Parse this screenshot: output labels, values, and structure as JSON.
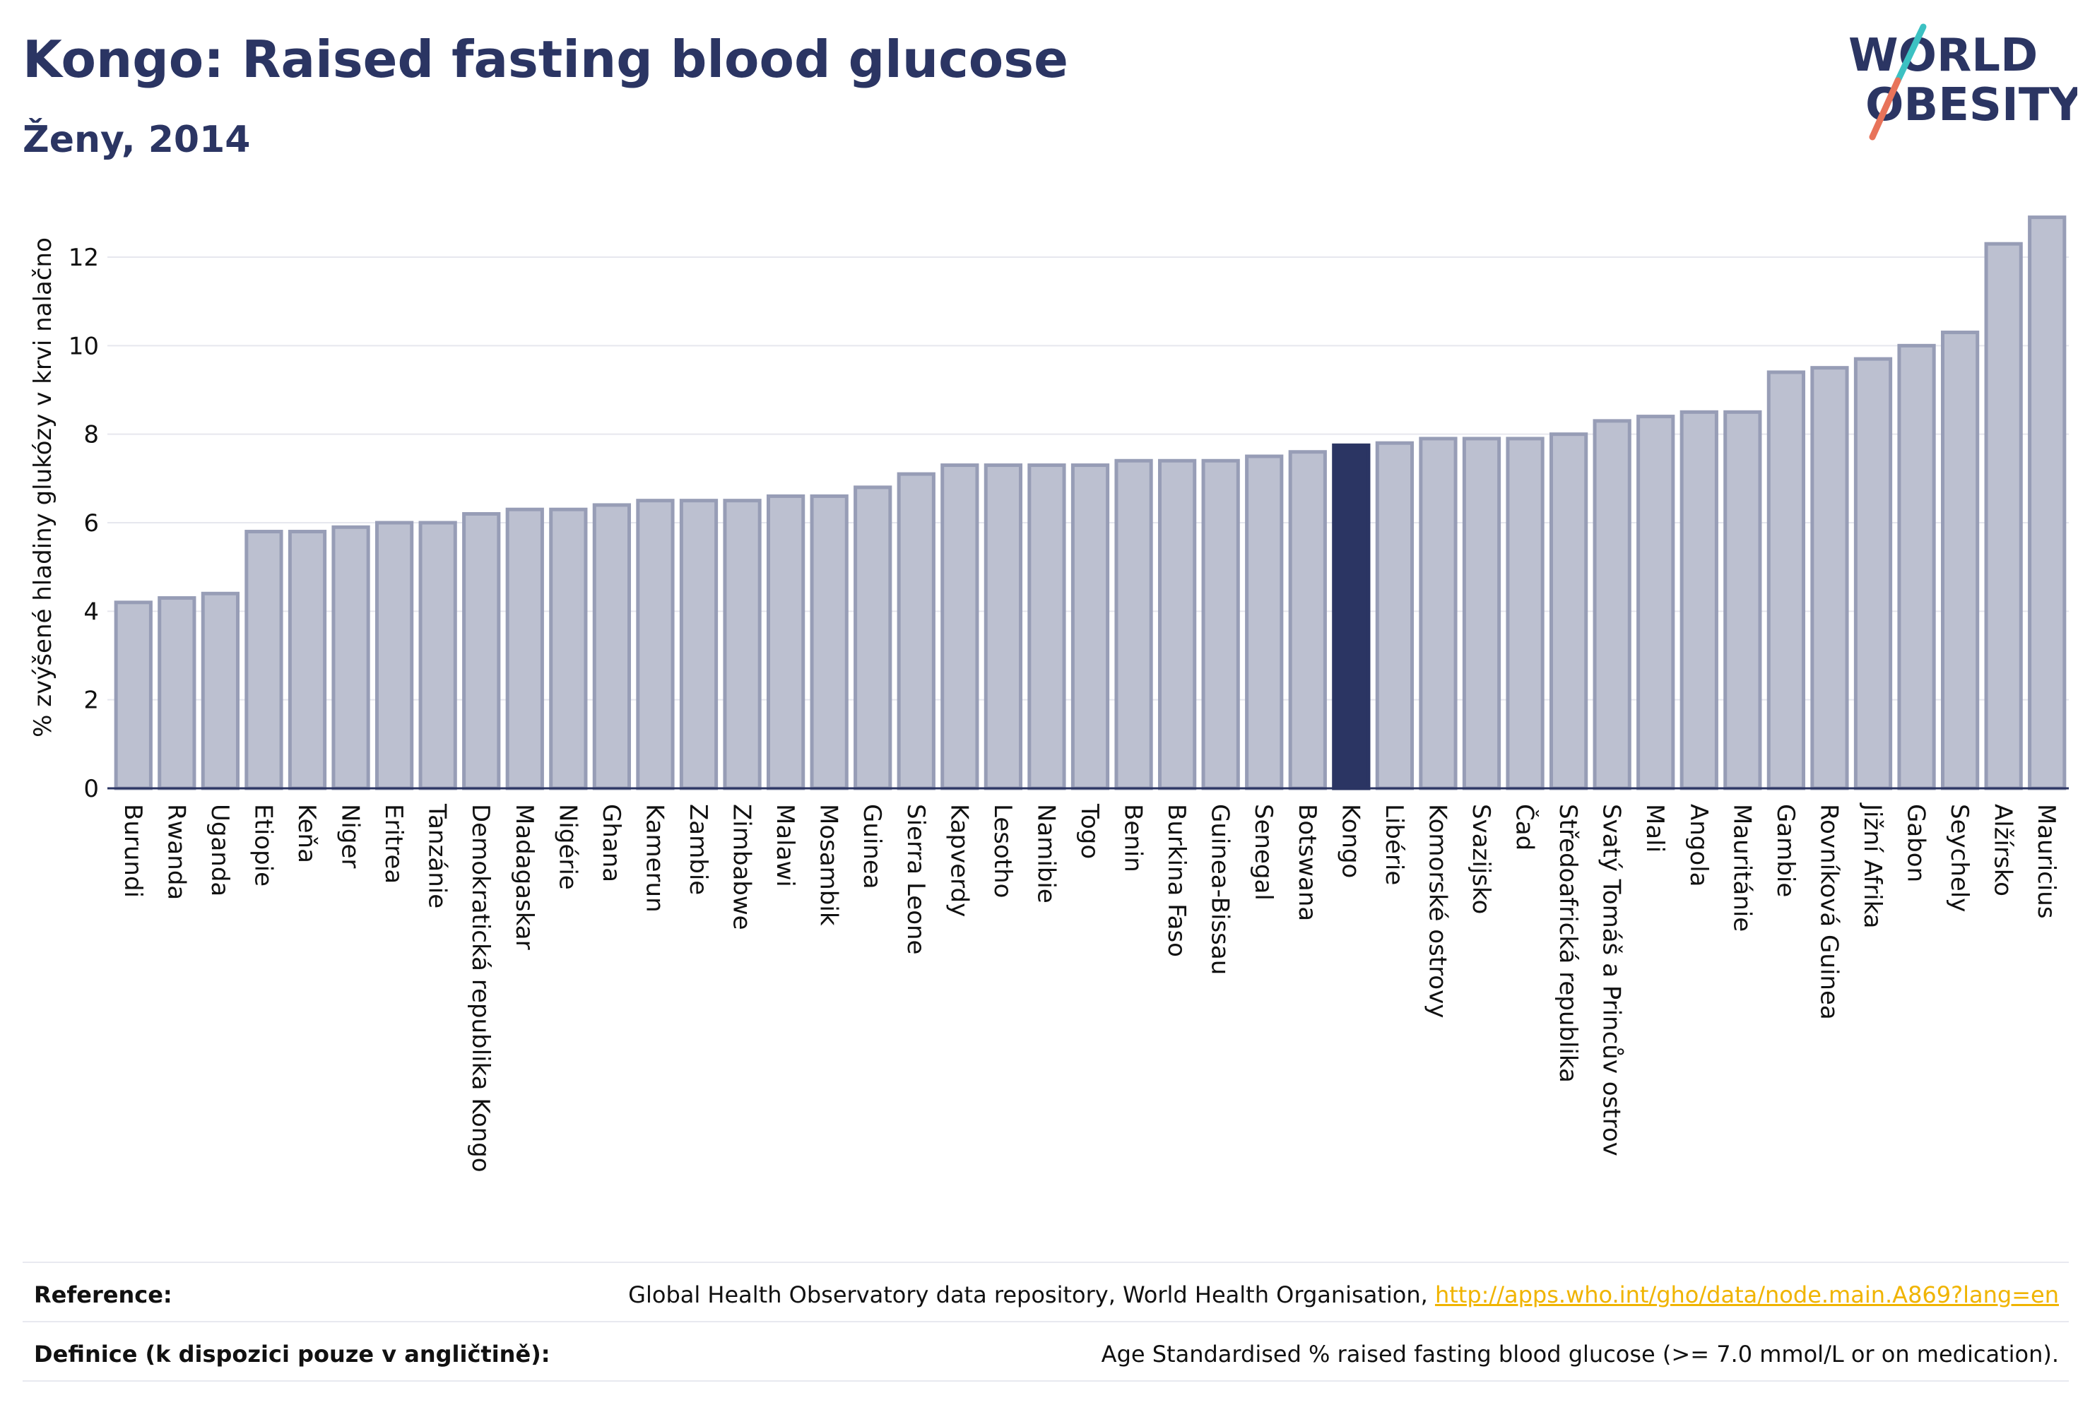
{
  "header": {
    "title": "Kongo: Raised fasting blood glucose",
    "subtitle": "Ženy, 2014"
  },
  "logo": {
    "line1": "WORLD",
    "line2": "OBESITY",
    "accent_teal": "#3cc1c2",
    "accent_coral": "#e8735a"
  },
  "colors": {
    "bar_default": "#bcc0d0",
    "bar_default_stroke": "#979db6",
    "bar_highlight": "#2b3563",
    "text": "#2b3563"
  },
  "chart_data": {
    "type": "bar",
    "ylabel": "% zvýšené hladiny glukózy v krvi nalačno",
    "xlabel": "",
    "ylim": [
      0,
      13.5
    ],
    "yticks": [
      0,
      2,
      4,
      6,
      8,
      10,
      12
    ],
    "grid": true,
    "highlight": "Kongo",
    "categories": [
      "Burundi",
      "Rwanda",
      "Uganda",
      "Etiopie",
      "Keňa",
      "Niger",
      "Eritrea",
      "Tanzánie",
      "Demokratická republika Kongo",
      "Madagaskar",
      "Nigérie",
      "Ghana",
      "Kamerun",
      "Zambie",
      "Zimbabwe",
      "Malawi",
      "Mosambik",
      "Guinea",
      "Sierra Leone",
      "Kapverdy",
      "Lesotho",
      "Namibie",
      "Togo",
      "Benin",
      "Burkina Faso",
      "Guinea-Bissau",
      "Senegal",
      "Botswana",
      "Kongo",
      "Libérie",
      "Komorské ostrovy",
      "Svazijsko",
      "Čad",
      "Středoafrická republika",
      "Svatý Tomáš a Princův ostrov",
      "Mali",
      "Angola",
      "Mauritánie",
      "Gambie",
      "Rovníková Guinea",
      "Jižní Afrika",
      "Gabon",
      "Seychely",
      "Alžírsko",
      "Mauricius"
    ],
    "values": [
      4.2,
      4.3,
      4.4,
      5.8,
      5.8,
      5.9,
      6.0,
      6.0,
      6.2,
      6.3,
      6.3,
      6.4,
      6.5,
      6.5,
      6.5,
      6.6,
      6.6,
      6.8,
      7.1,
      7.3,
      7.3,
      7.3,
      7.3,
      7.4,
      7.4,
      7.4,
      7.5,
      7.6,
      7.75,
      7.8,
      7.9,
      7.9,
      7.9,
      8.0,
      8.3,
      8.4,
      8.5,
      8.5,
      9.4,
      9.5,
      9.7,
      10.0,
      10.3,
      12.3,
      12.9
    ]
  },
  "footer": {
    "reference_label": "Reference:",
    "reference_text": "Global Health Observatory data repository, World Health Organisation, ",
    "reference_link": "http://apps.who.int/gho/data/node.main.A869?lang=en",
    "definition_label": "Definice (k dispozici pouze v angličtině):",
    "definition_text": "Age Standardised % raised fasting blood glucose (>= 7.0 mmol/L or on medication)."
  }
}
